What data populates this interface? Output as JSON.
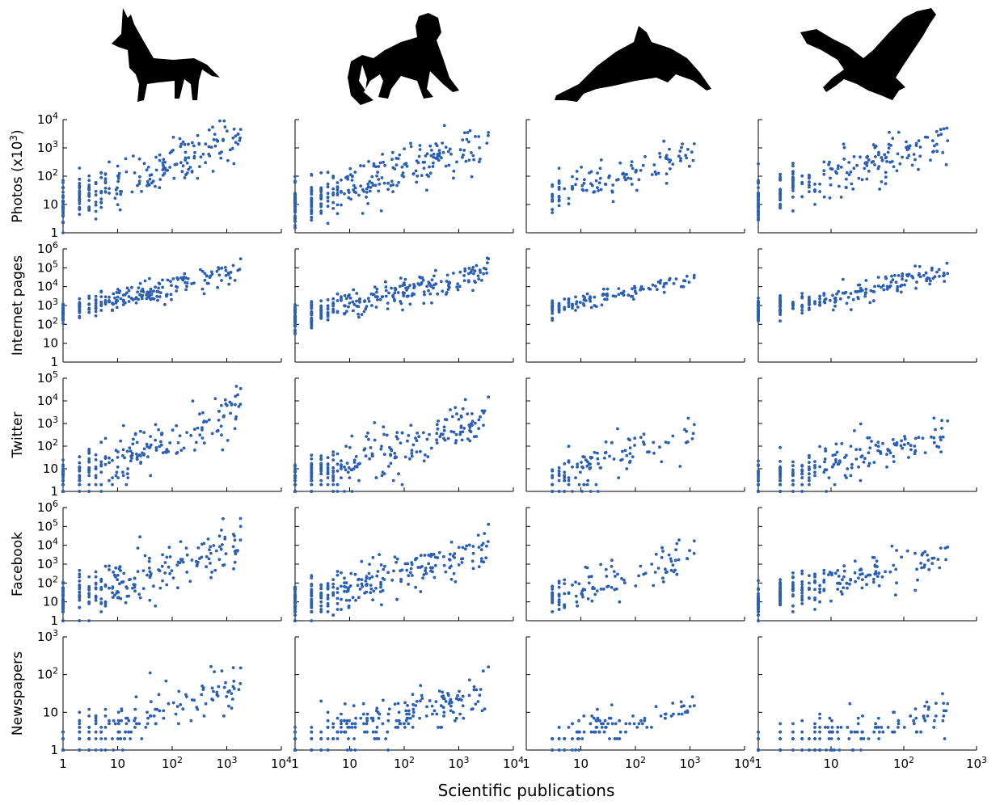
{
  "chart_data": {
    "type": "scatter",
    "x_scale": "log",
    "y_scale": "log",
    "grid": false,
    "xlabel": "Scientific publications",
    "icons": [
      "wolf-silhouette-icon",
      "monkey-silhouette-icon",
      "dolphin-silhouette-icon",
      "eagle-silhouette-icon"
    ],
    "point_color": "#2b5fb4",
    "columns": [
      {
        "icon": "wolf-silhouette-icon",
        "xlim": [
          1,
          10000
        ],
        "x_ticks": [
          "1",
          "10",
          "10^2",
          "10^3",
          "10^4"
        ]
      },
      {
        "icon": "monkey-silhouette-icon",
        "xlim": [
          1,
          10000
        ],
        "x_ticks": [
          "1",
          "10",
          "10^2",
          "10^3",
          "10^4"
        ]
      },
      {
        "icon": "dolphin-silhouette-icon",
        "xlim": [
          1,
          10000
        ],
        "x_ticks": [
          "1",
          "10",
          "10^2",
          "10^3",
          "10^4"
        ]
      },
      {
        "icon": "eagle-silhouette-icon",
        "xlim": [
          1,
          1000
        ],
        "x_ticks": [
          "1",
          "10",
          "10^2",
          "10^3"
        ]
      }
    ],
    "rows": [
      {
        "ylabel": "Photos (x10^3)",
        "ylim": [
          1,
          10000
        ],
        "y_ticks": [
          "1",
          "10",
          "10^2",
          "10^3",
          "10^4"
        ]
      },
      {
        "ylabel": "Internet pages",
        "ylim": [
          1,
          1000000
        ],
        "y_ticks": [
          "1",
          "10",
          "10^2",
          "10^3",
          "10^4",
          "10^5",
          "10^6"
        ]
      },
      {
        "ylabel": "Twitter",
        "ylim": [
          1,
          100000
        ],
        "y_ticks": [
          "1",
          "10",
          "10^2",
          "10^3",
          "10^4",
          "10^5"
        ]
      },
      {
        "ylabel": "Facebook",
        "ylim": [
          1,
          1000000
        ],
        "y_ticks": [
          "1",
          "10",
          "10^2",
          "10^3",
          "10^4",
          "10^5",
          "10^6"
        ]
      },
      {
        "ylabel": "Newspapers",
        "ylim": [
          1,
          1000
        ],
        "y_ticks": [
          "1",
          "10",
          "10^2",
          "10^3"
        ]
      }
    ],
    "panels": [
      {
        "row": 0,
        "col": 0,
        "x_range": [
          1,
          1800
        ],
        "fit": {
          "a": 10,
          "b": 0.75
        },
        "spread": 0.4,
        "n": 240,
        "x_max_point": 1800,
        "y_max_point": 4500
      },
      {
        "row": 0,
        "col": 1,
        "x_range": [
          1,
          3500
        ],
        "fit": {
          "a": 8,
          "b": 0.65
        },
        "spread": 0.4,
        "n": 280,
        "x_max_point": 3500,
        "y_max_point": 3500
      },
      {
        "row": 0,
        "col": 2,
        "x_range": [
          3,
          1200
        ],
        "fit": {
          "a": 10,
          "b": 0.6
        },
        "spread": 0.3,
        "n": 120,
        "x_max_point": 1200,
        "y_max_point": 1400
      },
      {
        "row": 0,
        "col": 3,
        "x_range": [
          1,
          400
        ],
        "fit": {
          "a": 15,
          "b": 0.8
        },
        "spread": 0.4,
        "n": 220,
        "x_max_point": 400,
        "y_max_point": 1800
      },
      {
        "row": 1,
        "col": 0,
        "x_range": [
          1,
          1800
        ],
        "fit": {
          "a": 400,
          "b": 0.7
        },
        "spread": 0.3,
        "n": 240,
        "x_max_point": 1800,
        "y_max_point": 300000
      },
      {
        "row": 1,
        "col": 1,
        "x_range": [
          1,
          3500
        ],
        "fit": {
          "a": 200,
          "b": 0.7
        },
        "spread": 0.35,
        "n": 280,
        "x_max_point": 3500,
        "y_max_point": 300000
      },
      {
        "row": 1,
        "col": 2,
        "x_range": [
          3,
          1200
        ],
        "fit": {
          "a": 400,
          "b": 0.6
        },
        "spread": 0.2,
        "n": 120,
        "x_max_point": 1200,
        "y_max_point": 40000
      },
      {
        "row": 1,
        "col": 3,
        "x_range": [
          1,
          400
        ],
        "fit": {
          "a": 500,
          "b": 0.75
        },
        "spread": 0.3,
        "n": 220,
        "x_max_point": 400,
        "y_max_point": 50000
      },
      {
        "row": 2,
        "col": 0,
        "x_range": [
          1,
          1800
        ],
        "fit": {
          "a": 2,
          "b": 1.0
        },
        "spread": 0.6,
        "n": 240,
        "x_max_point": 1800,
        "y_max_point": 35000
      },
      {
        "row": 2,
        "col": 1,
        "x_range": [
          1,
          3500
        ],
        "fit": {
          "a": 2,
          "b": 0.8
        },
        "spread": 0.5,
        "n": 280,
        "x_max_point": 3500,
        "y_max_point": 15000
      },
      {
        "row": 2,
        "col": 2,
        "x_range": [
          3,
          1200
        ],
        "fit": {
          "a": 1.5,
          "b": 0.8
        },
        "spread": 0.5,
        "n": 120,
        "x_max_point": 1200,
        "y_max_point": 900
      },
      {
        "row": 2,
        "col": 3,
        "x_range": [
          1,
          400
        ],
        "fit": {
          "a": 2,
          "b": 0.9
        },
        "spread": 0.5,
        "n": 220,
        "x_max_point": 400,
        "y_max_point": 1300
      },
      {
        "row": 3,
        "col": 0,
        "x_range": [
          1,
          1800
        ],
        "fit": {
          "a": 8,
          "b": 1.0
        },
        "spread": 0.6,
        "n": 240,
        "x_max_point": 1800,
        "y_max_point": 100000
      },
      {
        "row": 3,
        "col": 1,
        "x_range": [
          1,
          3500
        ],
        "fit": {
          "a": 8,
          "b": 0.8
        },
        "spread": 0.55,
        "n": 280,
        "x_max_point": 3500,
        "y_max_point": 130000
      },
      {
        "row": 3,
        "col": 2,
        "x_range": [
          3,
          1200
        ],
        "fit": {
          "a": 5,
          "b": 0.9
        },
        "spread": 0.5,
        "n": 120,
        "x_max_point": 1200,
        "y_max_point": 17000
      },
      {
        "row": 3,
        "col": 3,
        "x_range": [
          1,
          400
        ],
        "fit": {
          "a": 10,
          "b": 1.0
        },
        "spread": 0.5,
        "n": 220,
        "x_max_point": 400,
        "y_max_point": 8000
      },
      {
        "row": 4,
        "col": 0,
        "x_range": [
          1,
          1800
        ],
        "fit": {
          "a": 1.3,
          "b": 0.5
        },
        "spread": 0.3,
        "n": 200,
        "x_max_point": 1800,
        "y_max_point": 150
      },
      {
        "row": 4,
        "col": 1,
        "x_range": [
          1,
          3500
        ],
        "fit": {
          "a": 1.3,
          "b": 0.4
        },
        "spread": 0.3,
        "n": 240,
        "x_max_point": 3500,
        "y_max_point": 160
      },
      {
        "row": 4,
        "col": 2,
        "x_range": [
          3,
          1200
        ],
        "fit": {
          "a": 1.1,
          "b": 0.35
        },
        "spread": 0.25,
        "n": 110,
        "x_max_point": 1200,
        "y_max_point": 15
      },
      {
        "row": 4,
        "col": 3,
        "x_range": [
          1,
          400
        ],
        "fit": {
          "a": 1.1,
          "b": 0.35
        },
        "spread": 0.25,
        "n": 180,
        "x_max_point": 400,
        "y_max_point": 17
      }
    ]
  }
}
